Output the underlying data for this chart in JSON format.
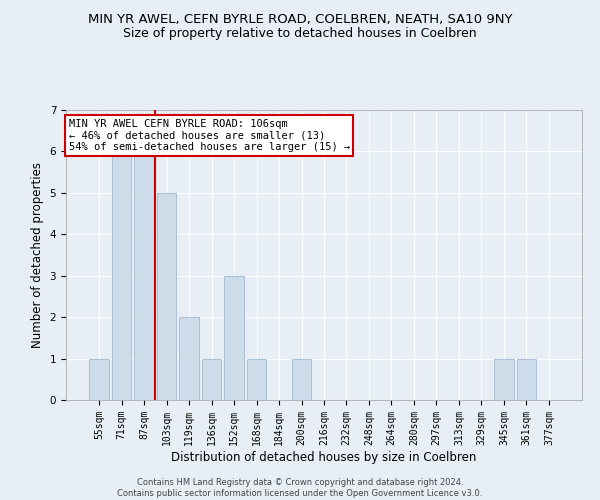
{
  "title": "MIN YR AWEL, CEFN BYRLE ROAD, COELBREN, NEATH, SA10 9NY",
  "subtitle": "Size of property relative to detached houses in Coelbren",
  "xlabel": "Distribution of detached houses by size in Coelbren",
  "ylabel": "Number of detached properties",
  "categories": [
    "55sqm",
    "71sqm",
    "87sqm",
    "103sqm",
    "119sqm",
    "136sqm",
    "152sqm",
    "168sqm",
    "184sqm",
    "200sqm",
    "216sqm",
    "232sqm",
    "248sqm",
    "264sqm",
    "280sqm",
    "297sqm",
    "313sqm",
    "329sqm",
    "345sqm",
    "361sqm",
    "377sqm"
  ],
  "values": [
    1,
    6,
    6,
    5,
    2,
    1,
    3,
    1,
    0,
    1,
    0,
    0,
    0,
    0,
    0,
    0,
    0,
    0,
    1,
    1,
    0
  ],
  "bar_color": "#ccdce8",
  "bar_edge_color": "#aabfd4",
  "vline_x_index": 3,
  "vline_color": "#cc0000",
  "annotation_text": "MIN YR AWEL CEFN BYRLE ROAD: 106sqm\n← 46% of detached houses are smaller (13)\n54% of semi-detached houses are larger (15) →",
  "annotation_box_facecolor": "#ffffff",
  "annotation_box_edgecolor": "#cc0000",
  "ylim": [
    0,
    7
  ],
  "yticks": [
    0,
    1,
    2,
    3,
    4,
    5,
    6,
    7
  ],
  "footer": "Contains HM Land Registry data © Crown copyright and database right 2024.\nContains public sector information licensed under the Open Government Licence v3.0.",
  "background_color": "#e8eef5",
  "axes_bg_color": "#e8eef5",
  "grid_color": "#ffffff",
  "title_fontsize": 9.5,
  "subtitle_fontsize": 9,
  "tick_fontsize": 7,
  "ylabel_fontsize": 8.5,
  "xlabel_fontsize": 8.5,
  "footer_fontsize": 6,
  "annotation_fontsize": 7.5
}
